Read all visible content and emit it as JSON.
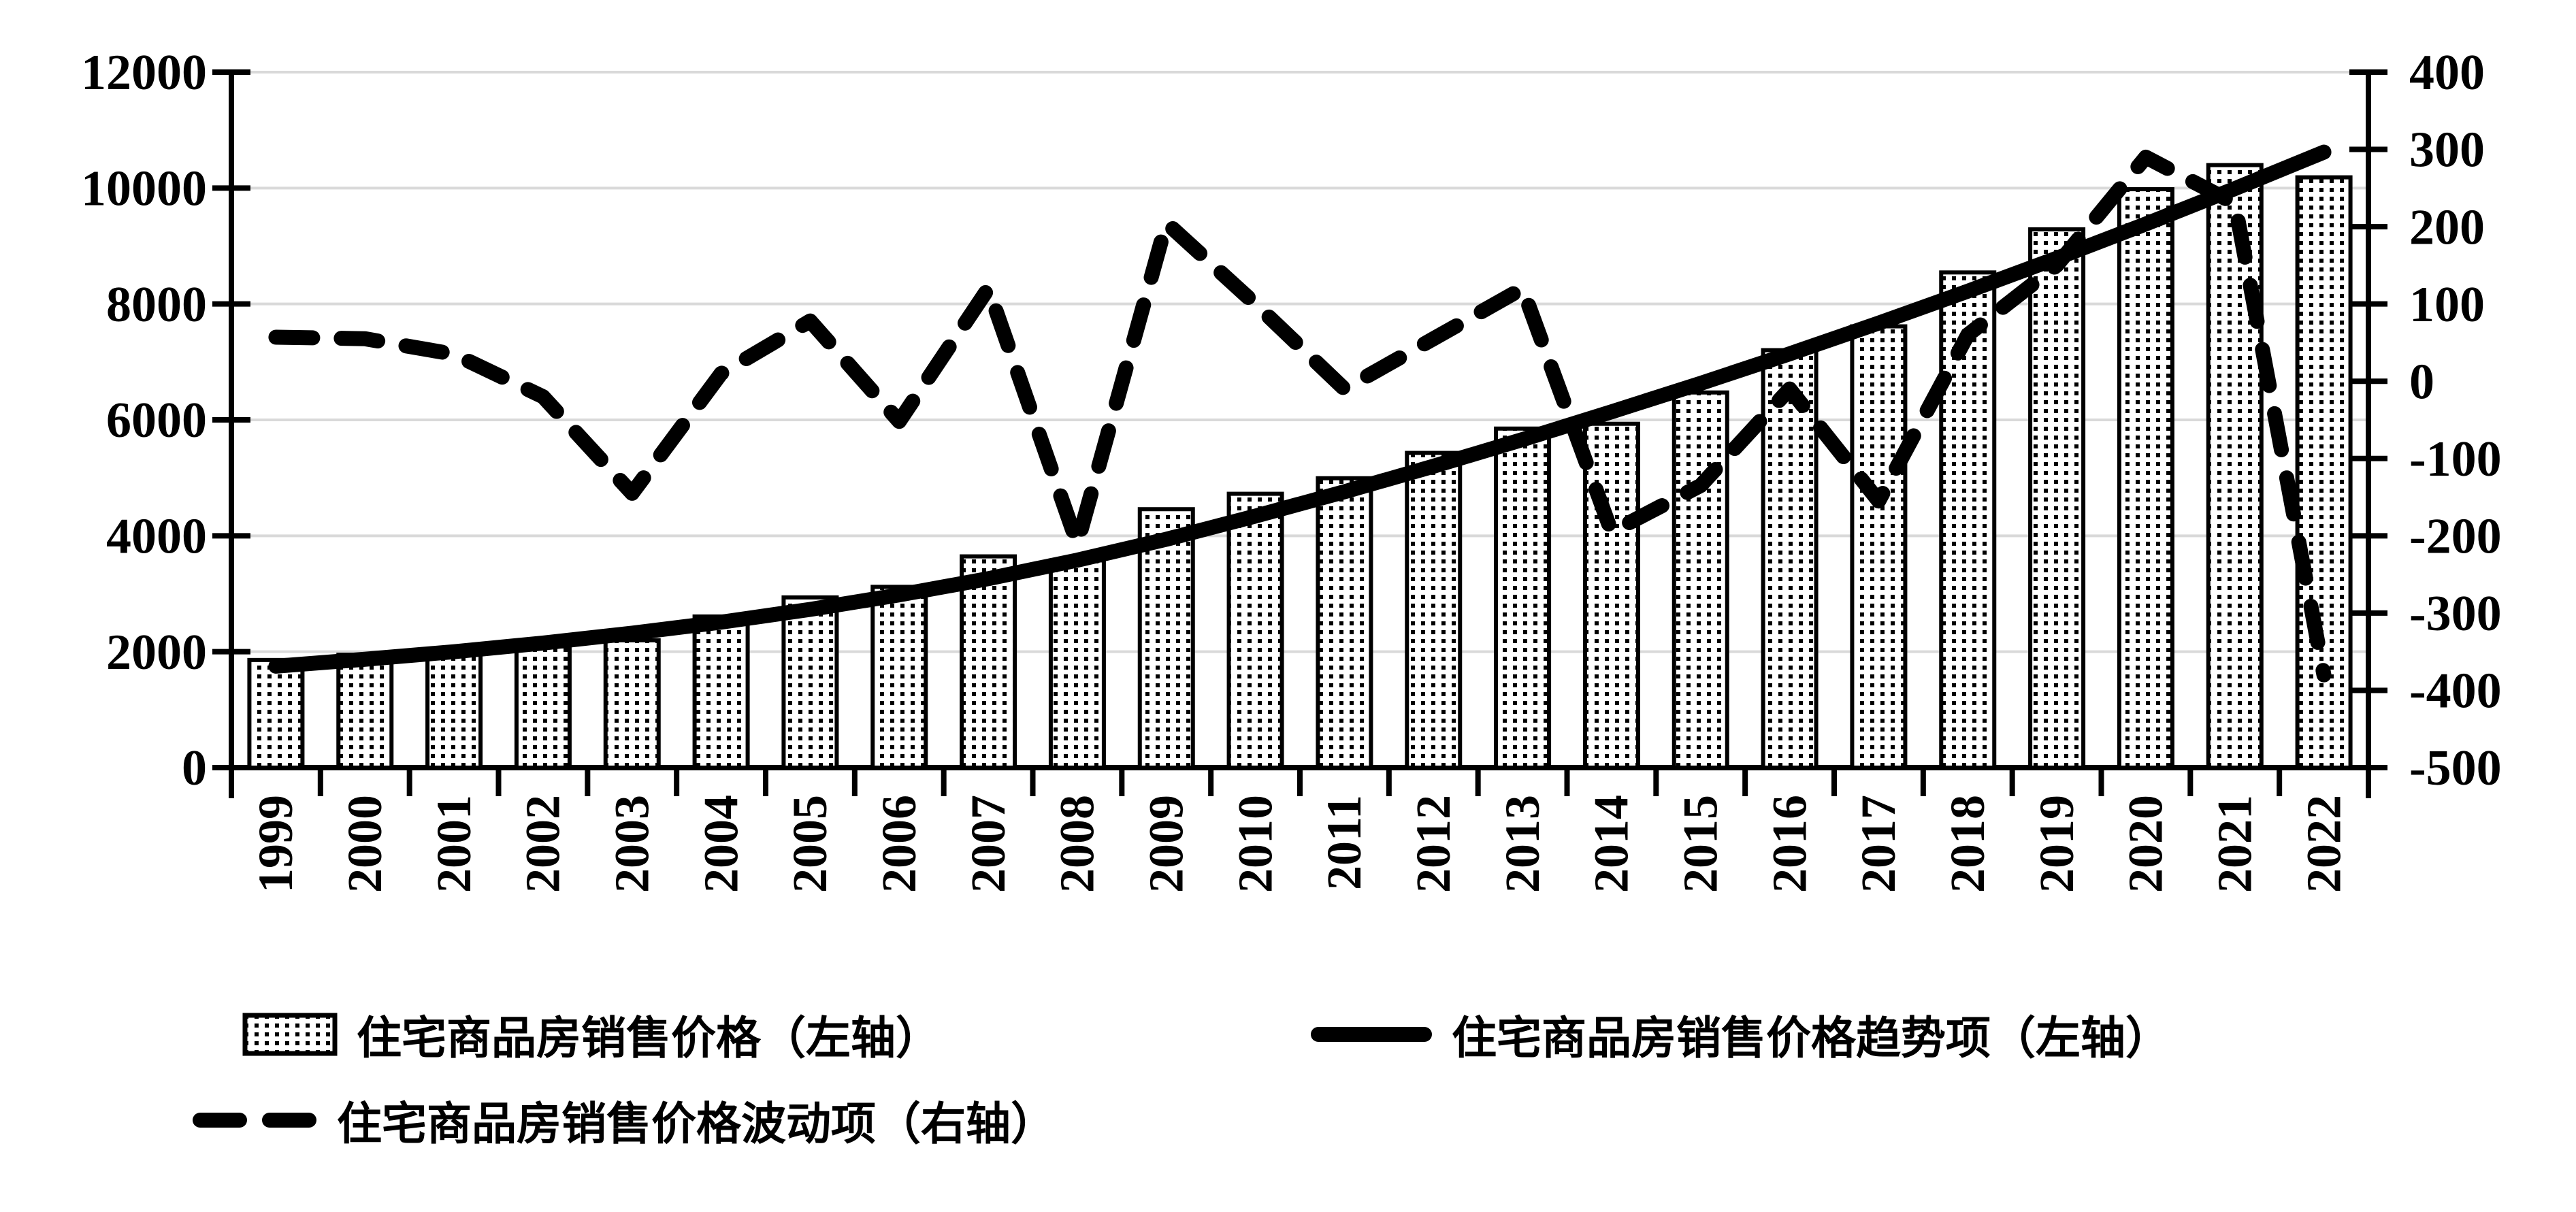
{
  "chart_data": {
    "type": "bar",
    "subtype": "combo-bar-line-dualaxis",
    "title": "",
    "xlabel": "",
    "ylabel_left": "",
    "ylabel_right": "",
    "grid": true,
    "legend_position": "bottom",
    "background": "#ffffff",
    "colors": {
      "ink": "#000000",
      "gridline": "#d9d9d9",
      "bar_fill": "#ffffff"
    },
    "categories": [
      "1999",
      "2000",
      "2001",
      "2002",
      "2003",
      "2004",
      "2005",
      "2006",
      "2007",
      "2008",
      "2009",
      "2010",
      "2011",
      "2012",
      "2013",
      "2014",
      "2015",
      "2016",
      "2017",
      "2018",
      "2019",
      "2020",
      "2021",
      "2022"
    ],
    "left_axis": {
      "min": 0,
      "max": 12000,
      "step": 2000,
      "ticks": [
        12000,
        10000,
        8000,
        6000,
        4000,
        2000,
        0
      ]
    },
    "right_axis": {
      "min": -500,
      "max": 400,
      "step": 100,
      "ticks": [
        400,
        300,
        200,
        100,
        0,
        -100,
        -200,
        -300,
        -400,
        -500
      ]
    },
    "series": [
      {
        "name": "住宅商品房销售价格（左轴）",
        "type": "bar",
        "axis": "left",
        "pattern": "dotted",
        "values": [
          1857,
          1948,
          2017,
          2092,
          2197,
          2608,
          2937,
          3119,
          3645,
          3576,
          4459,
          4725,
          4993,
          5430,
          5850,
          5933,
          6473,
          7203,
          7614,
          8544,
          9287,
          9980,
          10396,
          10185
        ]
      },
      {
        "name": "住宅商品房销售价格趋势项（左轴）",
        "type": "line",
        "style": "solid",
        "axis": "left",
        "values": [
          1750,
          1870,
          2000,
          2150,
          2320,
          2510,
          2730,
          2980,
          3260,
          3580,
          3940,
          4340,
          4760,
          5200,
          5660,
          6140,
          6630,
          7140,
          7670,
          8220,
          8790,
          9380,
          9990,
          10620
        ]
      },
      {
        "name": "住宅商品房销售价格波动项（右轴）",
        "type": "line",
        "style": "dashed",
        "axis": "right",
        "values": [
          57,
          55,
          35,
          -20,
          -145,
          10,
          78,
          -52,
          120,
          -210,
          205,
          100,
          -10,
          55,
          120,
          -195,
          -135,
          -10,
          -155,
          60,
          150,
          290,
          230,
          -380
        ]
      }
    ]
  },
  "legend": {
    "items": [
      {
        "label": "住宅商品房销售价格（左轴）"
      },
      {
        "label": "住宅商品房销售价格趋势项（左轴）"
      },
      {
        "label": "住宅商品房销售价格波动项（右轴）"
      }
    ]
  }
}
